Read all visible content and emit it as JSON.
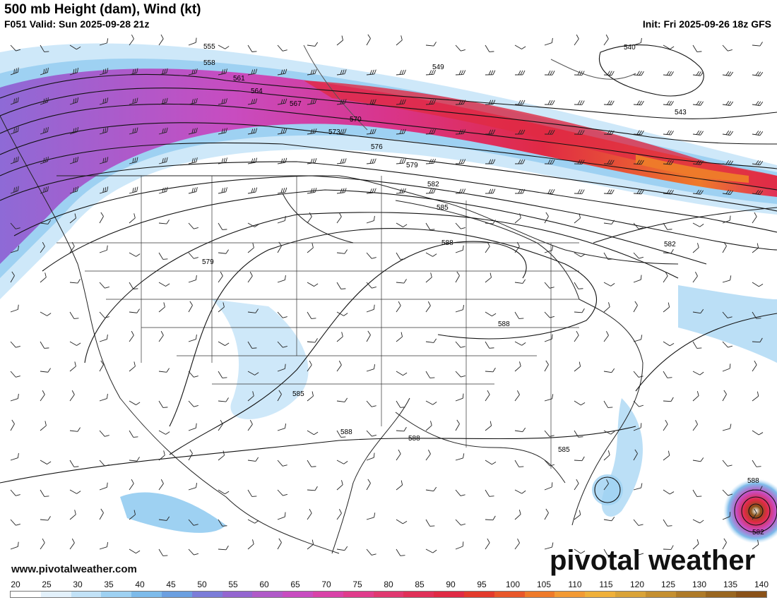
{
  "header": {
    "title": "500 mb Height (dam), Wind (kt)",
    "valid": "F051 Valid: Sun 2025-09-28 21z",
    "init": "Init: Fri 2025-09-26 18z GFS"
  },
  "watermark": "pivotal weather",
  "website": "www.pivotalweather.com",
  "map": {
    "projection": "lambert-conformal North America",
    "height_contour_labels": [
      "555",
      "558",
      "561",
      "564",
      "567",
      "570",
      "573",
      "576",
      "579",
      "582",
      "585",
      "588",
      "540",
      "543",
      "549",
      "579",
      "582",
      "585",
      "588",
      "588",
      "588",
      "585",
      "588",
      "582"
    ],
    "wind_shading": "jet streak over southern Canada",
    "features": [
      "jet stream",
      "tropical cyclone near Bahamas",
      "tropical cyclone east of Florida"
    ]
  },
  "colorbar": {
    "labels": [
      "20",
      "25",
      "30",
      "35",
      "40",
      "45",
      "50",
      "55",
      "60",
      "65",
      "70",
      "75",
      "80",
      "85",
      "90",
      "95",
      "100",
      "105",
      "110",
      "115",
      "120",
      "125",
      "130",
      "135",
      "140"
    ],
    "colors": [
      "#ffffff",
      "#e3f1fb",
      "#c2e2f7",
      "#9ed1f2",
      "#7dbbea",
      "#6b9fe0",
      "#7b7cd8",
      "#9466d0",
      "#b05ac8",
      "#c84cc0",
      "#d942a8",
      "#e03c8c",
      "#e03870",
      "#e03058",
      "#e02a44",
      "#e33a2c",
      "#e8572a",
      "#ee7a2a",
      "#f29a34",
      "#efb03a",
      "#d9a338",
      "#c48f30",
      "#ae7a28",
      "#996620",
      "#8a5218"
    ]
  }
}
